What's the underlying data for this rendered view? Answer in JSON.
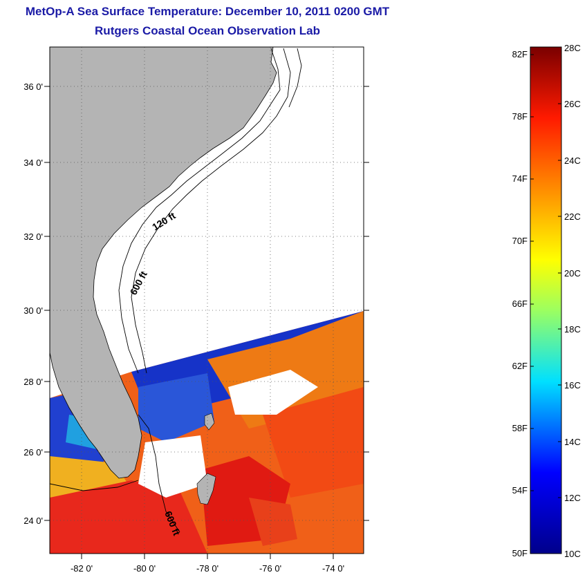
{
  "header": {
    "title": "MetOp-A Sea Surface Temperature:  December 10, 2011 0200 GMT",
    "subtitle": "Rutgers Coastal Ocean Observation Lab"
  },
  "map": {
    "lat_labels": [
      "36 0'",
      "34 0'",
      "32 0'",
      "30 0'",
      "28 0'",
      "26 0'",
      "24 0'"
    ],
    "lon_labels": [
      "-82 0'",
      "-80 0'",
      "-78 0'",
      "-76 0'",
      "-74 0'"
    ],
    "contour_labels": [
      "120 ft",
      "600 ft",
      "600 ft"
    ],
    "colors": {
      "land": "#b4b4b4",
      "no_data": "#ffffff"
    }
  },
  "colorbar": {
    "fahrenheit_labels": [
      "82F",
      "78F",
      "74F",
      "70F",
      "66F",
      "62F",
      "58F",
      "54F",
      "50F"
    ],
    "celsius_labels": [
      "28C",
      "26C",
      "24C",
      "22C",
      "20C",
      "18C",
      "16C",
      "14C",
      "12C",
      "10C"
    ],
    "colors": [
      "#8b0000",
      "#ff0000",
      "#ff8c00",
      "#ffff00",
      "#00ffff",
      "#0000ff",
      "#00008b"
    ]
  }
}
